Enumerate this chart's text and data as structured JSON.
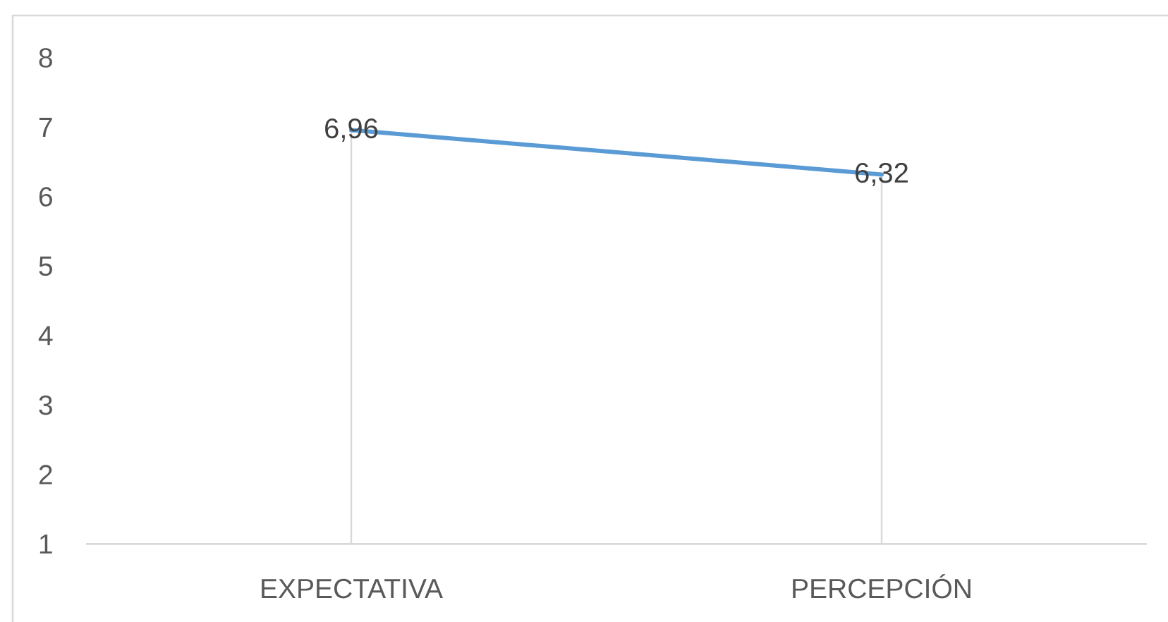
{
  "chart_data": {
    "type": "line",
    "categories": [
      "EXPECTATIVA",
      "PERCEPCIÓN"
    ],
    "series": [
      {
        "color": "#5b9bd5",
        "values": [
          6.96,
          6.32
        ],
        "value_labels": [
          "6,96",
          "6,32"
        ]
      }
    ],
    "ylim": [
      1,
      8
    ],
    "yticks": [
      1,
      2,
      3,
      4,
      5,
      6,
      7,
      8
    ],
    "line_style": "solid"
  }
}
